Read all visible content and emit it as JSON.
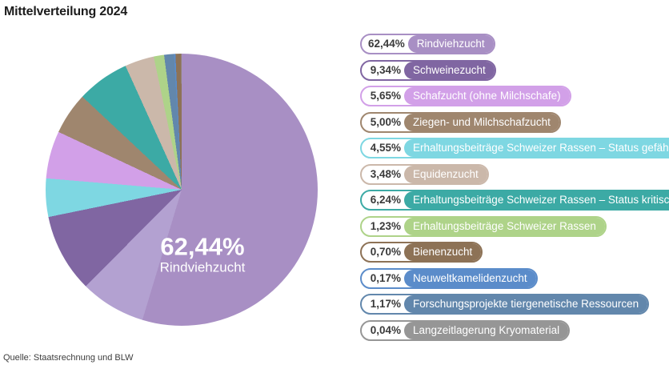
{
  "title": "Mittelverteilung 2024",
  "source": "Quelle: Staatsrechnung und BLW",
  "chart_data": {
    "type": "pie",
    "title": "Mittelverteilung 2024",
    "unit": "percent",
    "start_angle_deg": 0,
    "direction": "clockwise",
    "legend_position": "right",
    "center_label": {
      "value": "62,44%",
      "label": "Rindviehzucht"
    },
    "slices": [
      {
        "label": "Rindviehzucht",
        "value": 62.44,
        "percent_label": "62,44%",
        "color": "#a88fc4"
      },
      {
        "label": "Schweinezucht",
        "value": 9.34,
        "percent_label": "9,34%",
        "color": "#8066a2"
      },
      {
        "label": "Schafzucht (ohne Milchschafe)",
        "value": 5.65,
        "percent_label": "5,65%",
        "color": "#d2a0e8"
      },
      {
        "label": "Ziegen- und Milchschafzucht",
        "value": 5.0,
        "percent_label": "5,00%",
        "color": "#9f866e"
      },
      {
        "label": "Erhaltungsbeiträge Schweizer Rassen – Status gefährdet",
        "value": 4.55,
        "percent_label": "4,55%",
        "color": "#7ed7e2"
      },
      {
        "label": "Equidenzucht",
        "value": 3.48,
        "percent_label": "3,48%",
        "color": "#cbb8aa"
      },
      {
        "label": "Erhaltungsbeiträge Schweizer Rassen – Status kritisch",
        "value": 6.24,
        "percent_label": "6,24%",
        "color": "#3caaa5"
      },
      {
        "label": "Erhaltungsbeiträge Schweizer Rassen",
        "value": 1.23,
        "percent_label": "1,23%",
        "color": "#aed389"
      },
      {
        "label": "Bienenzucht",
        "value": 0.7,
        "percent_label": "0,70%",
        "color": "#8d7256"
      },
      {
        "label": "Neuweltkamelidenzucht",
        "value": 0.17,
        "percent_label": "0,17%",
        "color": "#5b8cca"
      },
      {
        "label": "Forschungsprojekte tiergenetische Ressourcen",
        "value": 1.17,
        "percent_label": "1,17%",
        "color": "#6287ac"
      },
      {
        "label": "Langzeitlagerung Kryomaterial",
        "value": 0.04,
        "percent_label": "0,04%",
        "color": "#969696"
      }
    ],
    "pie_clockwise_order": [
      0,
      1,
      4,
      2,
      3,
      6,
      5,
      7,
      10,
      9,
      8,
      11
    ]
  }
}
